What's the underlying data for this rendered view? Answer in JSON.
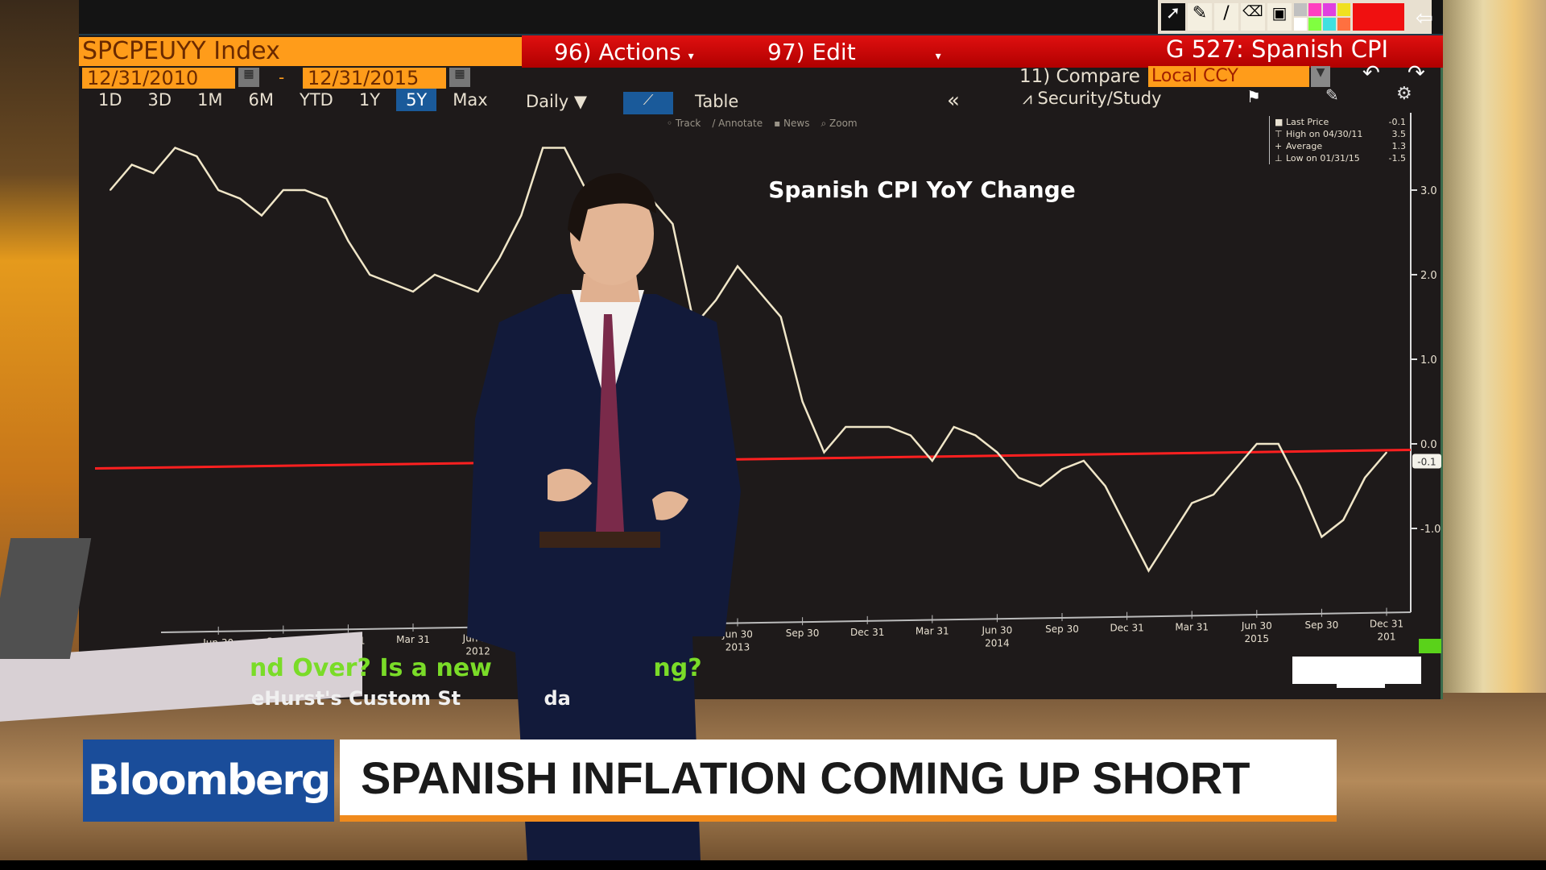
{
  "terminal": {
    "ticker": "SPCPEUYY Index",
    "actions_label": "96) Actions",
    "edit_label": "97) Edit",
    "page_title": "G 527: Spanish CPI",
    "start_date": "12/31/2010",
    "date_sep": "-",
    "end_date": "12/31/2015",
    "compare_label": "11) Compare",
    "currency": "Local CCY",
    "periods": [
      "1D",
      "3D",
      "1M",
      "6M",
      "YTD",
      "1Y",
      "5Y",
      "Max"
    ],
    "active_period": "5Y",
    "frequency": "Daily",
    "table_label": "Table",
    "security_study_label": "Security/Study",
    "collapse_label": "«",
    "tools": [
      "Track",
      "Annotate",
      "News",
      "Zoom"
    ],
    "palette_colors": [
      "#c0c0c0",
      "#ff40c0",
      "#e040e0",
      "#f0e020",
      "#ffffff",
      "#80ff40",
      "#40e0e0",
      "#ff7040",
      "#ff2020"
    ]
  },
  "legend": {
    "rows": [
      {
        "label": "Last Price",
        "value": "-0.1"
      },
      {
        "label": "High on 04/30/11",
        "value": "3.5"
      },
      {
        "label": "Average",
        "value": "1.3"
      },
      {
        "label": "Low on 01/31/15",
        "value": "-1.5"
      }
    ]
  },
  "chart_data": {
    "type": "line",
    "title": "Spanish CPI YoY Change",
    "frequency": "monthly",
    "x": [
      "2011-01",
      "2011-02",
      "2011-03",
      "2011-04",
      "2011-05",
      "2011-06",
      "2011-07",
      "2011-08",
      "2011-09",
      "2011-10",
      "2011-11",
      "2011-12",
      "2012-01",
      "2012-02",
      "2012-03",
      "2012-04",
      "2012-05",
      "2012-06",
      "2012-07",
      "2012-08",
      "2012-09",
      "2012-10",
      "2012-11",
      "2012-12",
      "2013-01",
      "2013-02",
      "2013-03",
      "2013-04",
      "2013-05",
      "2013-06",
      "2013-07",
      "2013-08",
      "2013-09",
      "2013-10",
      "2013-11",
      "2013-12",
      "2014-01",
      "2014-02",
      "2014-03",
      "2014-04",
      "2014-05",
      "2014-06",
      "2014-07",
      "2014-08",
      "2014-09",
      "2014-10",
      "2014-11",
      "2014-12",
      "2015-01",
      "2015-02",
      "2015-03",
      "2015-04",
      "2015-05",
      "2015-06",
      "2015-07",
      "2015-08",
      "2015-09",
      "2015-10",
      "2015-11",
      "2015-12"
    ],
    "series": [
      {
        "values": [
          3.0,
          3.3,
          3.2,
          3.5,
          3.4,
          3.0,
          2.9,
          2.7,
          3.0,
          3.0,
          2.9,
          2.4,
          2.0,
          1.9,
          1.8,
          2.0,
          1.9,
          1.8,
          2.2,
          2.7,
          3.5,
          3.5,
          3.0,
          2.9,
          2.8,
          2.9,
          2.6,
          1.4,
          1.7,
          2.1,
          1.8,
          1.5,
          0.5,
          -0.1,
          0.2,
          0.2,
          0.2,
          0.1,
          -0.2,
          0.2,
          0.1,
          -0.1,
          -0.4,
          -0.5,
          -0.3,
          -0.2,
          -0.5,
          -1.0,
          -1.5,
          -1.1,
          -0.7,
          -0.6,
          -0.3,
          0.0,
          0.0,
          -0.5,
          -1.1,
          -0.9,
          -0.4,
          -0.1
        ],
        "color": "#f0e6c8"
      }
    ],
    "last_price_line": -0.1,
    "last_price_color": "#ff2020",
    "last_price_tag": "-0.1",
    "ylim": [
      -1.8,
      3.8
    ],
    "y_ticks": [
      "3.0",
      "2.0",
      "1.0",
      "0.0",
      "-1.0"
    ],
    "y_tick_values": [
      3,
      2,
      1,
      0,
      -1
    ],
    "axis_side": "right",
    "x_ticks": [
      {
        "date": "2011-06",
        "label": "Jun 30",
        "year": ""
      },
      {
        "date": "2011-09",
        "label": "Sep 30",
        "year": ""
      },
      {
        "date": "2011-12",
        "label": "Dec 31",
        "year": ""
      },
      {
        "date": "2012-03",
        "label": "Mar 31",
        "year": ""
      },
      {
        "date": "2012-06",
        "label": "Jun 30",
        "year": "2012"
      },
      {
        "date": "2013-06",
        "label": "Jun 30",
        "year": "2013"
      },
      {
        "date": "2013-09",
        "label": "Sep 30",
        "year": ""
      },
      {
        "date": "2013-12",
        "label": "Dec 31",
        "year": ""
      },
      {
        "date": "2014-03",
        "label": "Mar 31",
        "year": ""
      },
      {
        "date": "2014-06",
        "label": "Jun 30",
        "year": "2014"
      },
      {
        "date": "2014-09",
        "label": "Sep 30",
        "year": ""
      },
      {
        "date": "2014-12",
        "label": "Dec 31",
        "year": ""
      },
      {
        "date": "2015-03",
        "label": "Mar 31",
        "year": ""
      },
      {
        "date": "2015-06",
        "label": "Jun 30",
        "year": "2015"
      },
      {
        "date": "2015-09",
        "label": "Sep 30",
        "year": ""
      },
      {
        "date": "2015-12",
        "label": "Dec 31",
        "year": "201"
      }
    ],
    "grid": false
  },
  "ticker_text": {
    "line1": "nd Over? Is a new",
    "line1_end": "ng?",
    "line2": "eHurst's Custom St",
    "line2_end": "da"
  },
  "lower_third": {
    "logo": "Bloomberg",
    "headline": "SPANISH INFLATION COMING UP SHORT"
  }
}
